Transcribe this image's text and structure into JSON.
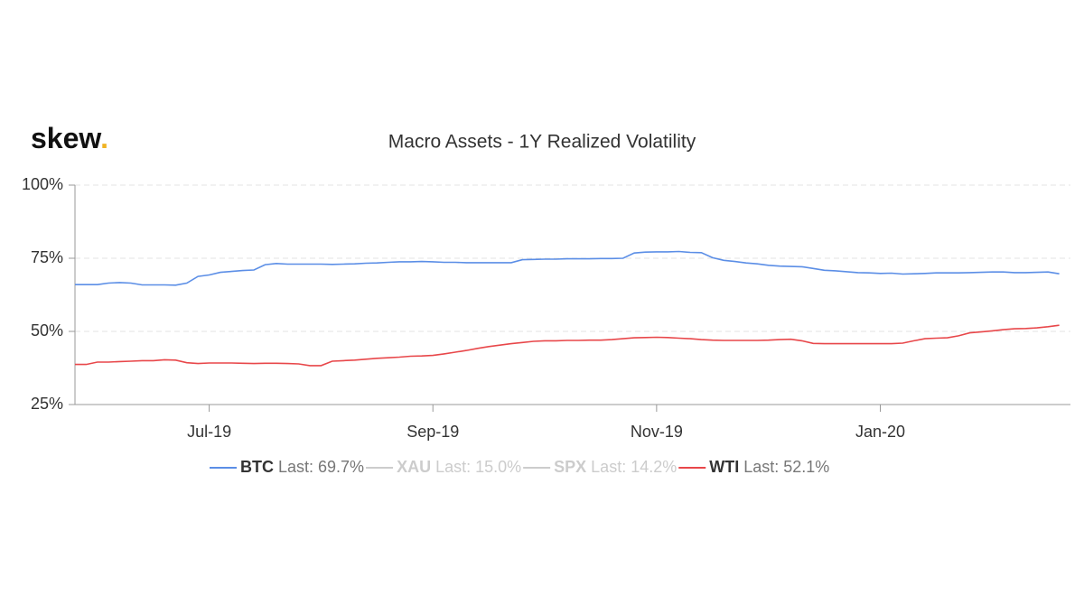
{
  "chart_data": {
    "type": "line",
    "brand": {
      "name": "skew",
      "dot": "."
    },
    "title": "Macro Assets - 1Y Realized Volatility",
    "categories": [
      null,
      null,
      null,
      null,
      null,
      null,
      null,
      null,
      null,
      null,
      null,
      null,
      "Jul-19",
      null,
      null,
      null,
      null,
      null,
      null,
      null,
      null,
      null,
      null,
      null,
      null,
      null,
      null,
      null,
      null,
      null,
      null,
      null,
      "Sep-19",
      null,
      null,
      null,
      null,
      null,
      null,
      null,
      null,
      null,
      null,
      null,
      null,
      null,
      null,
      null,
      null,
      null,
      null,
      null,
      "Nov-19",
      null,
      null,
      null,
      null,
      null,
      null,
      null,
      null,
      null,
      null,
      null,
      null,
      null,
      null,
      null,
      null,
      null,
      null,
      null,
      "Jan-20",
      null,
      null,
      null,
      null,
      null,
      null,
      null,
      null,
      null,
      null,
      null,
      null,
      null,
      null,
      null,
      null,
      null
    ],
    "ylim": [
      25,
      100
    ],
    "yticks": [
      {
        "value": 25,
        "label": "25%"
      },
      {
        "value": 50,
        "label": "50%"
      },
      {
        "value": 75,
        "label": "75%"
      },
      {
        "value": 100,
        "label": "100%"
      }
    ],
    "grid": true,
    "legend": "bottom",
    "series": [
      {
        "name": "BTC",
        "legend_label": "Last: 69.7%",
        "color": "#5b8ee6",
        "visible": true,
        "values": [
          66,
          66,
          66,
          66.5,
          66.7,
          66.5,
          65.9,
          65.9,
          65.9,
          65.8,
          66.5,
          68.8,
          69.3,
          70.2,
          70.5,
          70.8,
          71,
          72.8,
          73.2,
          73,
          73,
          73,
          73,
          72.9,
          73,
          73.1,
          73.3,
          73.4,
          73.6,
          73.8,
          73.8,
          73.9,
          73.8,
          73.6,
          73.6,
          73.5,
          73.5,
          73.5,
          73.5,
          73.5,
          74.5,
          74.6,
          74.7,
          74.7,
          74.8,
          74.8,
          74.8,
          74.9,
          74.9,
          75,
          76.8,
          77.1,
          77.2,
          77.2,
          77.3,
          77,
          76.9,
          75.2,
          74.3,
          73.9,
          73.4,
          73.1,
          72.6,
          72.3,
          72.2,
          72.1,
          71.5,
          70.9,
          70.7,
          70.4,
          70.1,
          70,
          69.8,
          69.9,
          69.6,
          69.7,
          69.8,
          70,
          70,
          70,
          70.1,
          70.2,
          70.3,
          70.3,
          70.1,
          70.1,
          70.2,
          70.3,
          69.7,
          null
        ]
      },
      {
        "name": "XAU",
        "legend_label": "Last: 15.0%",
        "color": "#cccccc",
        "visible": false
      },
      {
        "name": "SPX",
        "legend_label": "Last: 14.2%",
        "color": "#cccccc",
        "visible": false
      },
      {
        "name": "WTI",
        "legend_label": "Last: 52.1%",
        "color": "#e8474a",
        "visible": true,
        "values": [
          38.7,
          38.7,
          39.5,
          39.5,
          39.7,
          39.8,
          40,
          40,
          40.3,
          40.2,
          39.3,
          39,
          39.2,
          39.2,
          39.2,
          39.1,
          39,
          39.1,
          39.1,
          39,
          38.9,
          38.3,
          38.3,
          39.8,
          40,
          40.2,
          40.5,
          40.8,
          41,
          41.2,
          41.5,
          41.6,
          41.8,
          42.3,
          42.9,
          43.5,
          44.2,
          44.8,
          45.3,
          45.8,
          46.2,
          46.6,
          46.8,
          46.8,
          46.9,
          46.9,
          47,
          47,
          47.2,
          47.5,
          47.8,
          47.9,
          48,
          47.9,
          47.7,
          47.5,
          47.2,
          47,
          46.9,
          46.9,
          46.9,
          46.9,
          47,
          47.2,
          47.3,
          46.8,
          45.9,
          45.8,
          45.8,
          45.8,
          45.8,
          45.8,
          45.8,
          45.8,
          46,
          46.8,
          47.5,
          47.7,
          47.8,
          48.5,
          49.5,
          49.8,
          50.2,
          50.6,
          50.9,
          51,
          51.2,
          51.6,
          52.1,
          null
        ]
      }
    ]
  }
}
